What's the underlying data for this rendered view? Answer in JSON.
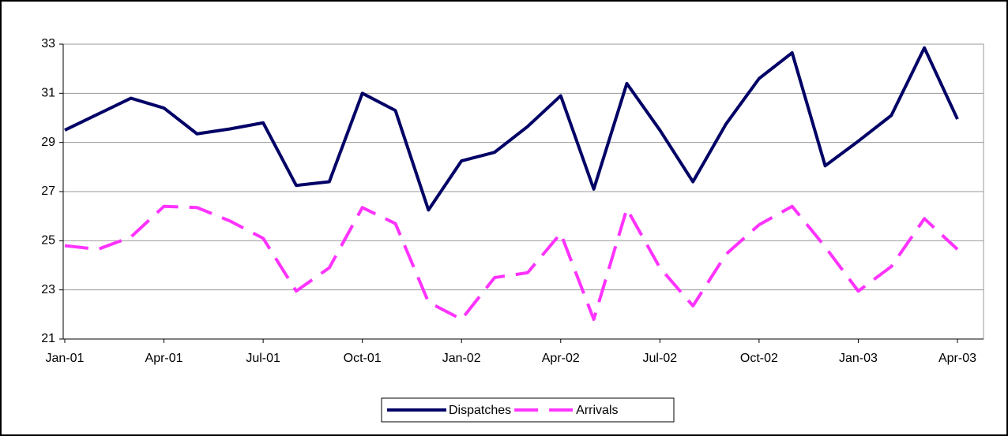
{
  "chart_data": {
    "type": "line",
    "categories": [
      "Jan-01",
      null,
      null,
      "Apr-01",
      null,
      null,
      "Jul-01",
      null,
      null,
      "Oct-01",
      null,
      null,
      "Jan-02",
      null,
      null,
      "Apr-02",
      null,
      null,
      "Jul-02",
      null,
      null,
      "Oct-02",
      null,
      null,
      "Jan-03",
      null,
      null,
      "Apr-03"
    ],
    "series": [
      {
        "name": "Dispatches",
        "color": "#000066",
        "dashed": false,
        "values": [
          29.5,
          30.15,
          30.8,
          30.4,
          29.35,
          29.55,
          29.8,
          27.25,
          27.4,
          31.0,
          30.3,
          26.25,
          28.25,
          28.6,
          29.65,
          30.9,
          27.1,
          31.4,
          29.5,
          27.4,
          29.75,
          31.6,
          32.65,
          28.05,
          29.05,
          30.1,
          32.85,
          29.95
        ]
      },
      {
        "name": "Arrivals",
        "color": "#ff33ff",
        "dashed": true,
        "values": [
          24.8,
          24.65,
          25.15,
          26.4,
          26.35,
          25.8,
          25.1,
          22.95,
          23.9,
          26.35,
          25.7,
          22.5,
          21.8,
          23.5,
          23.7,
          25.3,
          21.8,
          26.3,
          23.9,
          22.35,
          24.45,
          25.65,
          26.4,
          24.75,
          22.95,
          23.95,
          25.9,
          24.65
        ]
      }
    ],
    "ylim": [
      21,
      33
    ],
    "yticks": [
      21,
      23,
      25,
      27,
      29,
      31,
      33
    ],
    "grid": true,
    "legend": "bottom"
  }
}
